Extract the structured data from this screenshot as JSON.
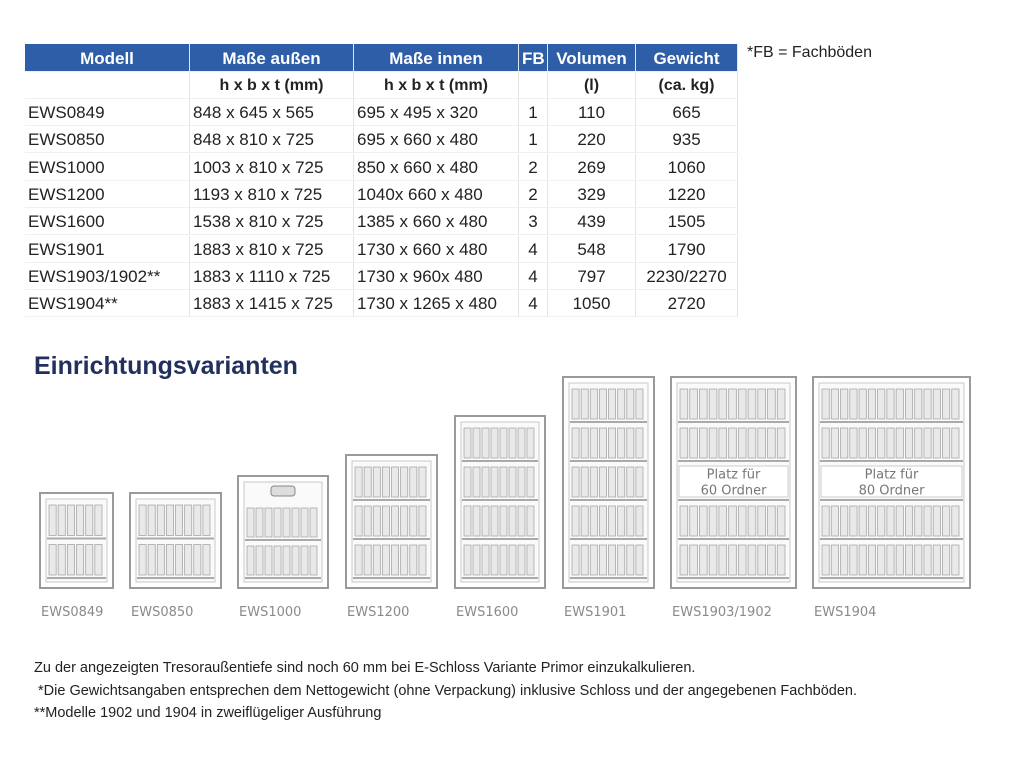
{
  "table": {
    "headers": [
      "Modell",
      "Maße außen",
      "Maße innen",
      "FB",
      "Volumen",
      "Gewicht"
    ],
    "subheaders": [
      "h x b x t (mm)",
      "h x b x t (mm)",
      "(l)",
      "(ca. kg)"
    ],
    "rows": [
      [
        "EWS0849",
        "848 x 645 x 565",
        "695 x 495 x 320",
        "1",
        "110",
        "665"
      ],
      [
        "EWS0850",
        "848 x 810 x 725",
        "695 x 660 x 480",
        "1",
        "220",
        "935"
      ],
      [
        "EWS1000",
        "1003 x 810 x 725",
        "850 x 660 x 480",
        "2",
        "269",
        "1060"
      ],
      [
        "EWS1200",
        "1193 x 810 x 725",
        "1040x 660 x 480",
        "2",
        "329",
        "1220"
      ],
      [
        "EWS1600",
        "1538 x 810 x 725",
        "1385 x 660 x 480",
        "3",
        "439",
        "1505"
      ],
      [
        "EWS1901",
        "1883 x 810 x 725",
        "1730 x 660 x 480",
        "4",
        "548",
        "1790"
      ],
      [
        "EWS1903/1902**",
        "1883 x 1110 x 725",
        "1730 x 960x 480",
        "4",
        "797",
        "2230/2270"
      ],
      [
        "EWS1904**",
        "1883 x 1415 x 725",
        "1730 x 1265 x 480",
        "4",
        "1050",
        "2720"
      ]
    ]
  },
  "note": "*FB = Fachböden",
  "section_title": "Einrichtungsvarianten",
  "safe_labels": [
    "EWS0849",
    "EWS0850",
    "EWS1000",
    "EWS1200",
    "EWS1600",
    "EWS1901",
    "EWS1903/1902",
    "EWS1904"
  ],
  "space_notes": [
    [
      "Platz für",
      "60 Ordner"
    ],
    [
      "Platz für",
      "80 Ordner"
    ]
  ],
  "footnotes": [
    "Zu der angezeigten Tresoraußentiefe sind noch 60 mm bei E-Schloss Variante Primor einzukalkulieren.",
    " *Die Gewichtsangaben entsprechen dem Nettogewicht (ohne Verpackung) inklusive Schloss und der angegebenen Fachböden.",
    "**Modelle 1902 und 1904 in zweiflügeliger Ausführung"
  ]
}
